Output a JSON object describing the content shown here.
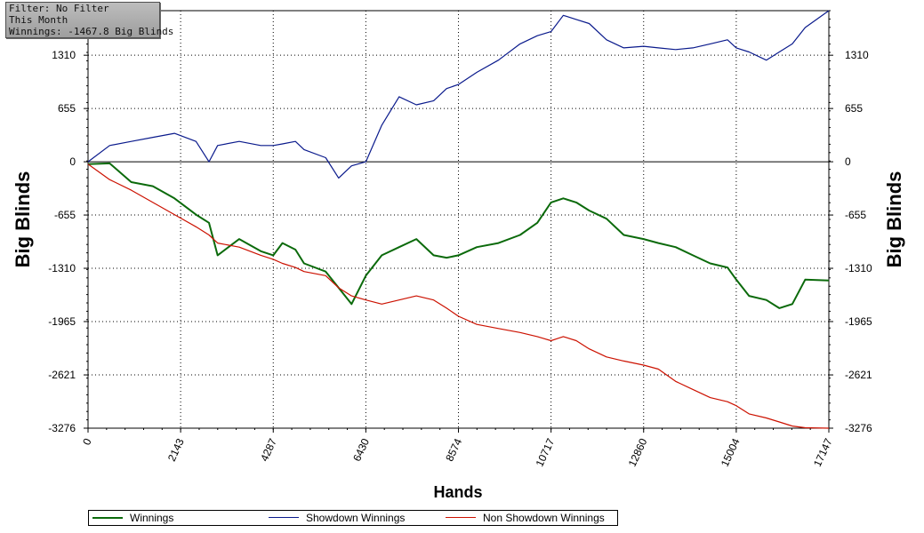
{
  "info": {
    "filter": "Filter: No Filter",
    "period": "This Month",
    "winnings": "Winnings: -1467.8 Big Blinds"
  },
  "chart_data": {
    "type": "line",
    "xlabel": "Hands",
    "ylabel": "Big Blinds",
    "xlim": [
      0,
      17147
    ],
    "ylim": [
      -3276,
      1858
    ],
    "x_ticks": [
      "0",
      "2143",
      "4287",
      "6430",
      "8574",
      "10717",
      "12860",
      "15004",
      "17147"
    ],
    "y_ticks": [
      "1310",
      "655",
      "0",
      "-655",
      "-1310",
      "-1965",
      "-2621",
      "-3276"
    ],
    "grid": true,
    "legend_position": "bottom",
    "x": [
      0,
      500,
      1000,
      1500,
      2000,
      2500,
      2800,
      3000,
      3500,
      4000,
      4287,
      4500,
      4800,
      5000,
      5500,
      5800,
      6100,
      6430,
      6800,
      7200,
      7600,
      8000,
      8300,
      8574,
      9000,
      9500,
      10000,
      10400,
      10717,
      11000,
      11300,
      11600,
      12000,
      12400,
      12860,
      13200,
      13600,
      14000,
      14400,
      14800,
      15004,
      15300,
      15700,
      16000,
      16300,
      16600,
      17147
    ],
    "series": [
      {
        "name": "Winnings",
        "color": "#0b6a0b",
        "values": [
          -30,
          -20,
          -250,
          -300,
          -450,
          -650,
          -750,
          -1150,
          -950,
          -1100,
          -1150,
          -1000,
          -1080,
          -1250,
          -1350,
          -1550,
          -1750,
          -1400,
          -1150,
          -1050,
          -950,
          -1150,
          -1180,
          -1150,
          -1050,
          -1000,
          -900,
          -750,
          -500,
          -450,
          -500,
          -600,
          -700,
          -900,
          -950,
          -1000,
          -1050,
          -1150,
          -1250,
          -1300,
          -1450,
          -1650,
          -1700,
          -1800,
          -1750,
          -1450,
          -1460
        ]
      },
      {
        "name": "Showdown Winnings",
        "color": "#0a1a8c",
        "values": [
          0,
          200,
          250,
          300,
          350,
          250,
          0,
          200,
          250,
          200,
          200,
          220,
          250,
          150,
          50,
          -200,
          -50,
          0,
          450,
          800,
          700,
          750,
          900,
          950,
          1100,
          1250,
          1450,
          1550,
          1600,
          1800,
          1750,
          1700,
          1500,
          1400,
          1420,
          1400,
          1380,
          1400,
          1450,
          1500,
          1400,
          1350,
          1250,
          1350,
          1450,
          1650,
          1858
        ]
      },
      {
        "name": "Non Showdown Winnings",
        "color": "#cc1100",
        "values": [
          -30,
          -220,
          -350,
          -500,
          -650,
          -800,
          -900,
          -1000,
          -1050,
          -1150,
          -1200,
          -1250,
          -1300,
          -1350,
          -1400,
          -1550,
          -1650,
          -1700,
          -1750,
          -1700,
          -1650,
          -1700,
          -1800,
          -1900,
          -2000,
          -2050,
          -2100,
          -2150,
          -2200,
          -2150,
          -2200,
          -2300,
          -2400,
          -2450,
          -2500,
          -2550,
          -2700,
          -2800,
          -2900,
          -2950,
          -3000,
          -3100,
          -3150,
          -3200,
          -3250,
          -3270,
          -3276
        ]
      }
    ]
  },
  "legend": [
    {
      "label": "Winnings",
      "color": "#0b6a0b"
    },
    {
      "label": "Showdown Winnings",
      "color": "#0a1a8c"
    },
    {
      "label": "Non Showdown Winnings",
      "color": "#cc1100"
    }
  ]
}
